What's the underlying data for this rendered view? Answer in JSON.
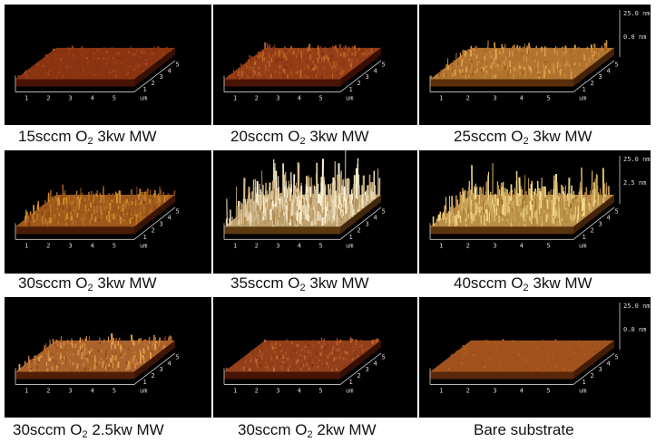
{
  "panels": [
    {
      "caption": {
        "pre": "15sccm O",
        "sub": "2",
        "post": " 3kw MW"
      },
      "roughness": 0.1,
      "colors": [
        "#6b1d08",
        "#b2501c"
      ],
      "spikes": 0.0,
      "scale": ""
    },
    {
      "caption": {
        "pre": "20sccm O",
        "sub": "2",
        "post": " 3kw MW"
      },
      "roughness": 0.3,
      "colors": [
        "#6a1c08",
        "#c8682a"
      ],
      "spikes": 0.1,
      "scale": ""
    },
    {
      "caption": {
        "pre": "25sccm O",
        "sub": "2",
        "post": " 3kw MW"
      },
      "roughness": 0.35,
      "colors": [
        "#8a4a12",
        "#e0a650"
      ],
      "spikes": 0.15,
      "scale": [
        "25.0 nm",
        "0.0 nm"
      ]
    },
    {
      "caption": {
        "pre": "30sccm O",
        "sub": "2",
        "post": " 3kw MW"
      },
      "roughness": 0.4,
      "colors": [
        "#6e2a0a",
        "#d7922f"
      ],
      "spikes": 0.2,
      "scale": ""
    },
    {
      "caption": {
        "pre": "35sccm O",
        "sub": "2",
        "post": " 3kw MW"
      },
      "roughness": 1.0,
      "colors": [
        "#8a5a18",
        "#fff6d8"
      ],
      "spikes": 1.0,
      "scale": ""
    },
    {
      "caption": {
        "pre": "40sccm O",
        "sub": "2",
        "post": " 3kw MW"
      },
      "roughness": 0.75,
      "colors": [
        "#8a5214",
        "#f5dc8a"
      ],
      "spikes": 0.7,
      "scale": [
        "25.0 nm",
        "2.5 nm"
      ]
    },
    {
      "caption": {
        "pre": "30sccm O",
        "sub": "2",
        "post": " 2.5kw MW"
      },
      "roughness": 0.35,
      "colors": [
        "#7a2e0c",
        "#e6a250"
      ],
      "spikes": 0.1,
      "scale": ""
    },
    {
      "caption": {
        "pre": "30sccm O",
        "sub": "2",
        "post": " 2kw MW"
      },
      "roughness": 0.2,
      "colors": [
        "#6a1e08",
        "#c56a30"
      ],
      "spikes": 0.05,
      "scale": ""
    },
    {
      "caption": {
        "pre": "Bare substrate",
        "sub": "",
        "post": ""
      },
      "roughness": 0.0,
      "colors": [
        "#8a3e10",
        "#c06a2a"
      ],
      "spikes": 0.0,
      "scale": [
        "25.0 nm",
        "0.0 nm"
      ]
    }
  ],
  "axis": {
    "x_ticks": [
      "1",
      "2",
      "3",
      "4",
      "5"
    ],
    "y_ticks": [
      "1",
      "2",
      "3",
      "4",
      "5"
    ],
    "unit": "um"
  }
}
